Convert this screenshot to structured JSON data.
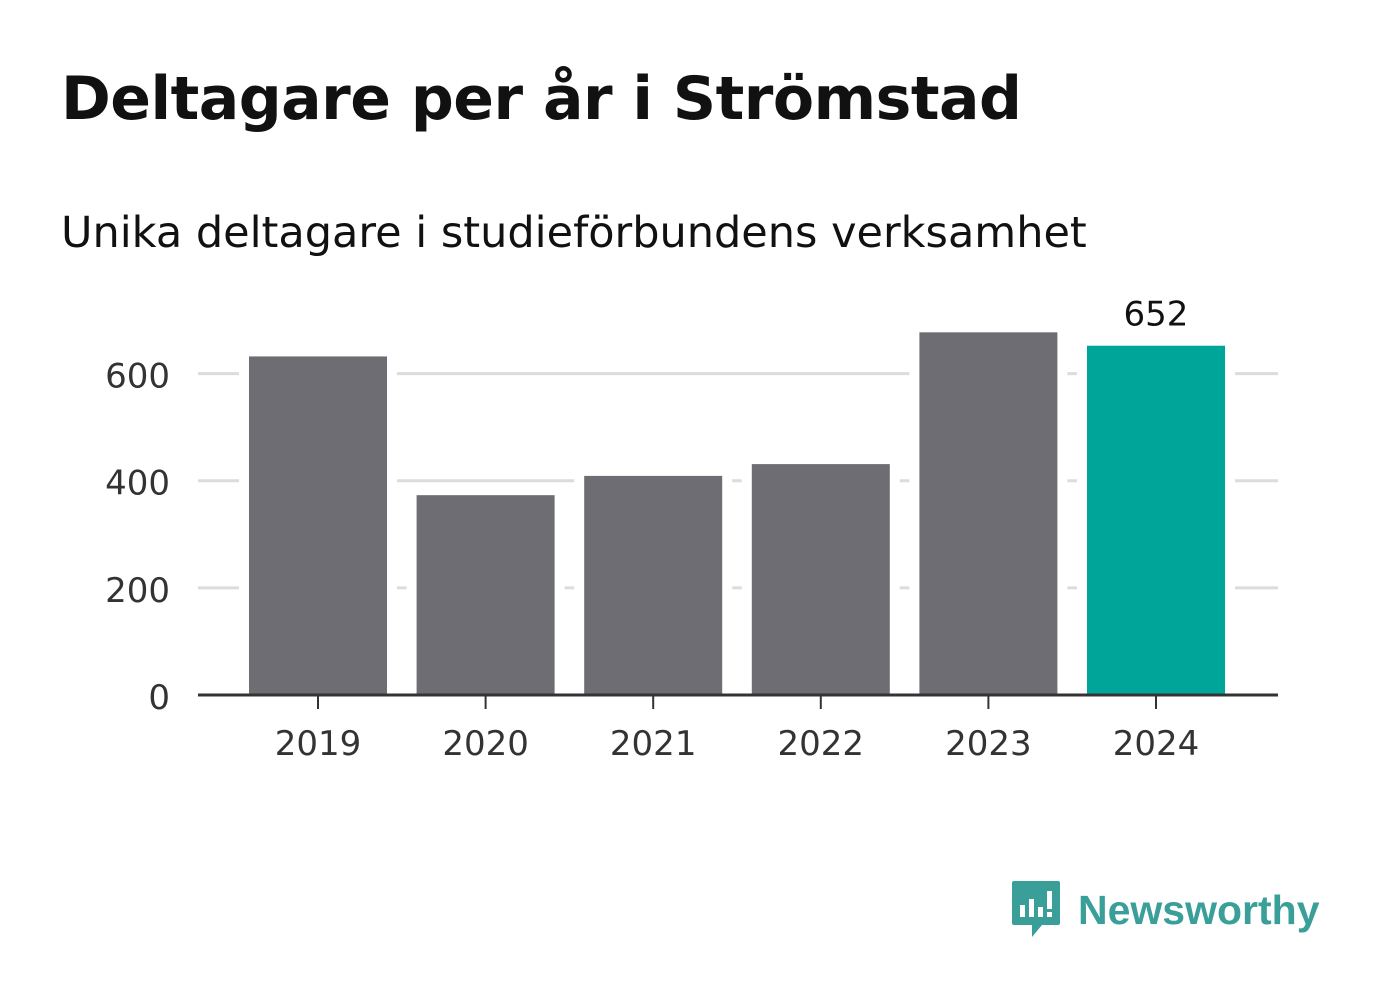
{
  "header": {
    "title": "Deltagare per år i Strömstad",
    "subtitle": "Unika deltagare i studieförbundens verksamhet"
  },
  "chart_data": {
    "type": "bar",
    "title": "Deltagare per år i Strömstad",
    "subtitle": "Unika deltagare i studieförbundens verksamhet",
    "xlabel": "",
    "ylabel": "",
    "categories": [
      "2019",
      "2020",
      "2021",
      "2022",
      "2023",
      "2024"
    ],
    "values": [
      632,
      373,
      409,
      431,
      677,
      652
    ],
    "ylim": [
      0,
      700
    ],
    "yticks": [
      0,
      200,
      400,
      600
    ],
    "grid": true,
    "highlight_index": 5,
    "labeled_value": "652",
    "colors": {
      "bar": "#6e6d73",
      "highlight": "#00a59a",
      "grid": "#dcdcdc",
      "axis": "#333333"
    }
  },
  "brand": {
    "name": "Newsworthy",
    "icon": "newsworthy-chart-icon",
    "color": "#3a9f98"
  }
}
